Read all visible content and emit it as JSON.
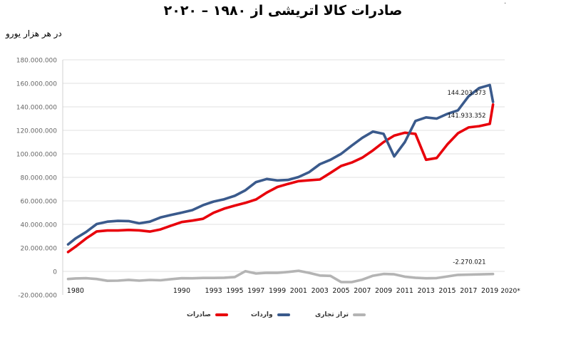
{
  "title": "صادرات کالا اتریشی از ۱۹۸۰ – ۲۰۲۰",
  "unit_label": "در هر هزار یورو",
  "corner_mark": "·",
  "chart_data": {
    "type": "line",
    "title": "صادرات کالا اتریشی از ۱۹۸۰ – ۲۰۲۰",
    "ylabel": "در هر هزار یورو",
    "ylim": [
      -20000000,
      180000000
    ],
    "xlim": [
      1978.8,
      2020.4
    ],
    "grid": true,
    "yticks": [
      {
        "value": 180000000,
        "label": "180.000.000"
      },
      {
        "value": 160000000,
        "label": "160.000.000"
      },
      {
        "value": 140000000,
        "label": "140.000.000"
      },
      {
        "value": 120000000,
        "label": "120.000.000"
      },
      {
        "value": 100000000,
        "label": "100.000.000"
      },
      {
        "value": 80000000,
        "label": "80.000.000"
      },
      {
        "value": 60000000,
        "label": "60.000.000"
      },
      {
        "value": 40000000,
        "label": "40.000.000"
      },
      {
        "value": 20000000,
        "label": "20.000.000"
      },
      {
        "value": 0,
        "label": "0"
      },
      {
        "value": -20000000,
        "label": "-20.000.000"
      }
    ],
    "xticks": [
      {
        "value": 1980,
        "label": "1980"
      },
      {
        "value": 1990,
        "label": "1990"
      },
      {
        "value": 1993,
        "label": "1993"
      },
      {
        "value": 1995,
        "label": "1995"
      },
      {
        "value": 1997,
        "label": "1997"
      },
      {
        "value": 1999,
        "label": "1999"
      },
      {
        "value": 2001,
        "label": "2001"
      },
      {
        "value": 2003,
        "label": "2003"
      },
      {
        "value": 2005,
        "label": "2005"
      },
      {
        "value": 2007,
        "label": "2007"
      },
      {
        "value": 2009,
        "label": "2009"
      },
      {
        "value": 2011,
        "label": "2011"
      },
      {
        "value": 2013,
        "label": "2013"
      },
      {
        "value": 2015,
        "label": "2015"
      },
      {
        "value": 2017,
        "label": "2017"
      },
      {
        "value": 2019,
        "label": "2019"
      },
      {
        "value": 2020,
        "label": "2020*"
      }
    ],
    "legend_position": "bottom",
    "series": [
      {
        "name": "صادرات",
        "color": "#e8000b",
        "points": [
          [
            1979.3,
            16500000
          ],
          [
            1980,
            21000000
          ],
          [
            1981,
            28000000
          ],
          [
            1982,
            34000000
          ],
          [
            1983,
            34800000
          ],
          [
            1984,
            34800000
          ],
          [
            1985,
            35300000
          ],
          [
            1986,
            34900000
          ],
          [
            1987,
            33900000
          ],
          [
            1988,
            35700000
          ],
          [
            1989,
            38900000
          ],
          [
            1990,
            42000000
          ],
          [
            1991,
            43200000
          ],
          [
            1992,
            44700000
          ],
          [
            1993,
            49900000
          ],
          [
            1994,
            53400000
          ],
          [
            1995,
            56000000
          ],
          [
            1996,
            58300000
          ],
          [
            1997,
            61200000
          ],
          [
            1998,
            67000000
          ],
          [
            1999,
            71800000
          ],
          [
            2000,
            74400000
          ],
          [
            2001,
            76800000
          ],
          [
            2002,
            77500000
          ],
          [
            2003,
            78200000
          ],
          [
            2004,
            83800000
          ],
          [
            2005,
            89700000
          ],
          [
            2006,
            92600000
          ],
          [
            2007,
            96800000
          ],
          [
            2008,
            103000000
          ],
          [
            2009,
            110000000
          ],
          [
            2010,
            115500000
          ],
          [
            2011,
            118000000
          ],
          [
            2012,
            117000000
          ],
          [
            2013,
            95000000
          ],
          [
            2014,
            96500000
          ],
          [
            2015,
            108000000
          ],
          [
            2016,
            117500000
          ],
          [
            2017,
            122500000
          ],
          [
            2018,
            123600000
          ],
          [
            2019,
            125500000
          ],
          [
            2019.3,
            141933352
          ]
        ]
      },
      {
        "name": "واردات",
        "color": "#3a5a8c",
        "points": [
          [
            1979.3,
            23000000
          ],
          [
            1980,
            28000000
          ],
          [
            1981,
            33500000
          ],
          [
            1982,
            40300000
          ],
          [
            1983,
            42300000
          ],
          [
            1984,
            43000000
          ],
          [
            1985,
            42800000
          ],
          [
            1986,
            40900000
          ],
          [
            1987,
            42300000
          ],
          [
            1988,
            45900000
          ],
          [
            1989,
            48000000
          ],
          [
            1990,
            50000000
          ],
          [
            1991,
            52100000
          ],
          [
            1992,
            56300000
          ],
          [
            1993,
            59400000
          ],
          [
            1994,
            61400000
          ],
          [
            1995,
            64300000
          ],
          [
            1996,
            69000000
          ],
          [
            1997,
            76000000
          ],
          [
            1998,
            78600000
          ],
          [
            1999,
            77400000
          ],
          [
            2000,
            77800000
          ],
          [
            2001,
            80300000
          ],
          [
            2002,
            84500000
          ],
          [
            2003,
            91200000
          ],
          [
            2004,
            95000000
          ],
          [
            2005,
            100000000
          ],
          [
            2006,
            107000000
          ],
          [
            2007,
            113700000
          ],
          [
            2008,
            119000000
          ],
          [
            2009,
            117000000
          ],
          [
            2010,
            97800000
          ],
          [
            2011,
            110000000
          ],
          [
            2012,
            128000000
          ],
          [
            2013,
            131000000
          ],
          [
            2014,
            130000000
          ],
          [
            2015,
            134000000
          ],
          [
            2016,
            137000000
          ],
          [
            2017,
            149000000
          ],
          [
            2018,
            156000000
          ],
          [
            2019,
            158600000
          ],
          [
            2019.3,
            144203373
          ]
        ]
      },
      {
        "name": "تراز تجاری",
        "color": "#b4b4b4",
        "points": [
          [
            1979.3,
            -6500000
          ],
          [
            1980,
            -6000000
          ],
          [
            1981,
            -5800000
          ],
          [
            1982,
            -6500000
          ],
          [
            1983,
            -8000000
          ],
          [
            1984,
            -7900000
          ],
          [
            1985,
            -7200000
          ],
          [
            1986,
            -7900000
          ],
          [
            1987,
            -7300000
          ],
          [
            1988,
            -7600000
          ],
          [
            1989,
            -6600000
          ],
          [
            1990,
            -5800000
          ],
          [
            1991,
            -5900000
          ],
          [
            1992,
            -5600000
          ],
          [
            1993,
            -5600000
          ],
          [
            1994,
            -5400000
          ],
          [
            1995,
            -4800000
          ],
          [
            1996,
            200000
          ],
          [
            1997,
            -1800000
          ],
          [
            1998,
            -1200000
          ],
          [
            1999,
            -1300000
          ],
          [
            2000,
            -500000
          ],
          [
            2001,
            500000
          ],
          [
            2002,
            -1300000
          ],
          [
            2003,
            -3500000
          ],
          [
            2004,
            -3800000
          ],
          [
            2005,
            -9000000
          ],
          [
            2006,
            -9100000
          ],
          [
            2007,
            -7000000
          ],
          [
            2008,
            -3700000
          ],
          [
            2009,
            -2200000
          ],
          [
            2010,
            -2500000
          ],
          [
            2011,
            -4500000
          ],
          [
            2012,
            -5400000
          ],
          [
            2013,
            -5900000
          ],
          [
            2014,
            -5700000
          ],
          [
            2015,
            -4300000
          ],
          [
            2016,
            -3000000
          ],
          [
            2019.3,
            -2270021
          ]
        ]
      }
    ],
    "annotations": [
      {
        "text": "144.203.373",
        "x": 2019.3,
        "y": 144203373
      },
      {
        "text": "141.933.352",
        "x": 2019.3,
        "y": 141933352
      },
      {
        "text": "-2.270.021",
        "x": 2019.3,
        "y": -2270021
      }
    ]
  }
}
